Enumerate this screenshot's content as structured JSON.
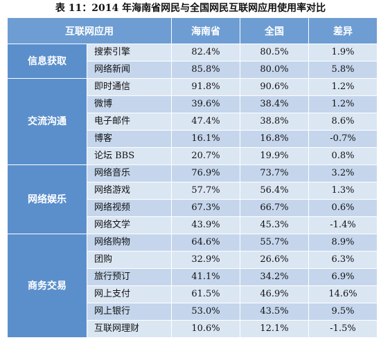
{
  "title": "表 11：2014 年海南省网民与全国网民互联网应用使用率对比",
  "headers": {
    "category": "互联网应用",
    "hainan": "海南省",
    "national": "全国",
    "diff": "差异"
  },
  "rows": [
    {
      "category": "信息获取",
      "span": 2,
      "app": "搜索引擎",
      "hainan": "82.4%",
      "national": "80.5%",
      "diff": "1.9%"
    },
    {
      "app": "网络新闻",
      "hainan": "85.8%",
      "national": "80.0%",
      "diff": "5.8%"
    },
    {
      "category": "交流沟通",
      "span": 5,
      "app": "即时通信",
      "hainan": "91.8%",
      "national": "90.6%",
      "diff": "1.2%"
    },
    {
      "app": "微博",
      "hainan": "39.6%",
      "national": "38.4%",
      "diff": "1.2%"
    },
    {
      "app": "电子邮件",
      "hainan": "47.4%",
      "national": "38.8%",
      "diff": "8.6%"
    },
    {
      "app": "博客",
      "hainan": "16.1%",
      "national": "16.8%",
      "diff": "-0.7%"
    },
    {
      "app": "论坛 BBS",
      "hainan": "20.7%",
      "national": "19.9%",
      "diff": "0.8%"
    },
    {
      "category": "网络娱乐",
      "span": 4,
      "app": "网络音乐",
      "hainan": "76.9%",
      "national": "73.7%",
      "diff": "3.2%"
    },
    {
      "app": "网络游戏",
      "hainan": "57.7%",
      "national": "56.4%",
      "diff": "1.3%"
    },
    {
      "app": "网络视频",
      "hainan": "67.3%",
      "national": "66.7%",
      "diff": "0.6%"
    },
    {
      "app": "网络文学",
      "hainan": "43.9%",
      "national": "45.3%",
      "diff": "-1.4%"
    },
    {
      "category": "商务交易",
      "span": 6,
      "app": "网络购物",
      "hainan": "64.6%",
      "national": "55.7%",
      "diff": "8.9%"
    },
    {
      "app": "团购",
      "hainan": "32.9%",
      "national": "26.6%",
      "diff": "6.3%"
    },
    {
      "app": "旅行预订",
      "hainan": "41.1%",
      "national": "34.2%",
      "diff": "6.9%"
    },
    {
      "app": "网上支付",
      "hainan": "61.5%",
      "national": "46.9%",
      "diff": "14.6%"
    },
    {
      "app": "网上银行",
      "hainan": "53.0%",
      "national": "43.5%",
      "diff": "9.5%"
    },
    {
      "app": "互联网理财",
      "hainan": "10.6%",
      "national": "12.1%",
      "diff": "-1.5%"
    }
  ]
}
